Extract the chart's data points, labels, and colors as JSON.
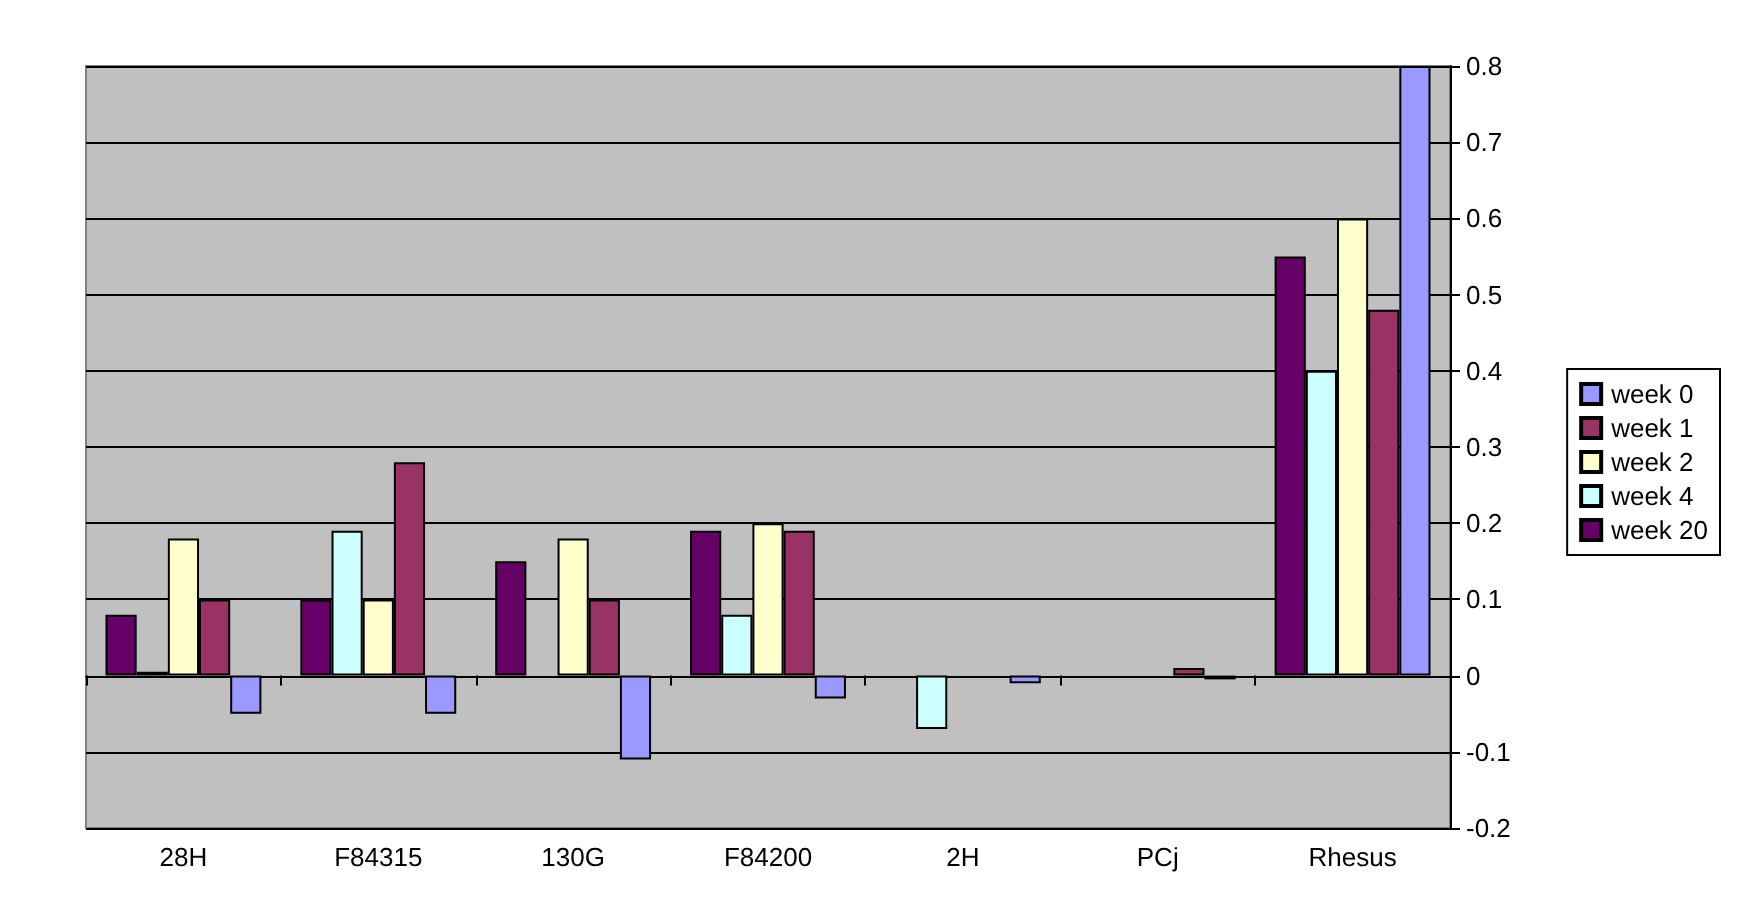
{
  "chart_data": {
    "type": "bar",
    "categories": [
      "28H",
      "F84315",
      "130G",
      "F84200",
      "2H",
      "PCj",
      "Rhesus"
    ],
    "series": [
      {
        "name": "week 0",
        "color": "#9999ff",
        "values": [
          -0.05,
          -0.05,
          -0.11,
          -0.03,
          -0.01,
          -0.005,
          0.8
        ]
      },
      {
        "name": "week 1",
        "color": "#993366",
        "values": [
          0.1,
          0.28,
          0.1,
          0.19,
          null,
          0.01,
          0.48
        ]
      },
      {
        "name": "week 2",
        "color": "#ffffcc",
        "values": [
          0.18,
          0.1,
          0.18,
          0.2,
          null,
          null,
          0.6
        ]
      },
      {
        "name": "week 4",
        "color": "#ccffff",
        "values": [
          0.005,
          0.19,
          null,
          0.08,
          -0.07,
          null,
          0.4
        ]
      },
      {
        "name": "week 20",
        "color": "#660066",
        "values": [
          0.08,
          0.1,
          0.15,
          0.19,
          null,
          null,
          0.55
        ]
      }
    ],
    "ylim": [
      -0.2,
      0.8
    ],
    "yticks": [
      -0.2,
      -0.1,
      0,
      0.1,
      0.2,
      0.3,
      0.4,
      0.5,
      0.6,
      0.7,
      0.8
    ],
    "grid": "y",
    "legend": "right"
  }
}
